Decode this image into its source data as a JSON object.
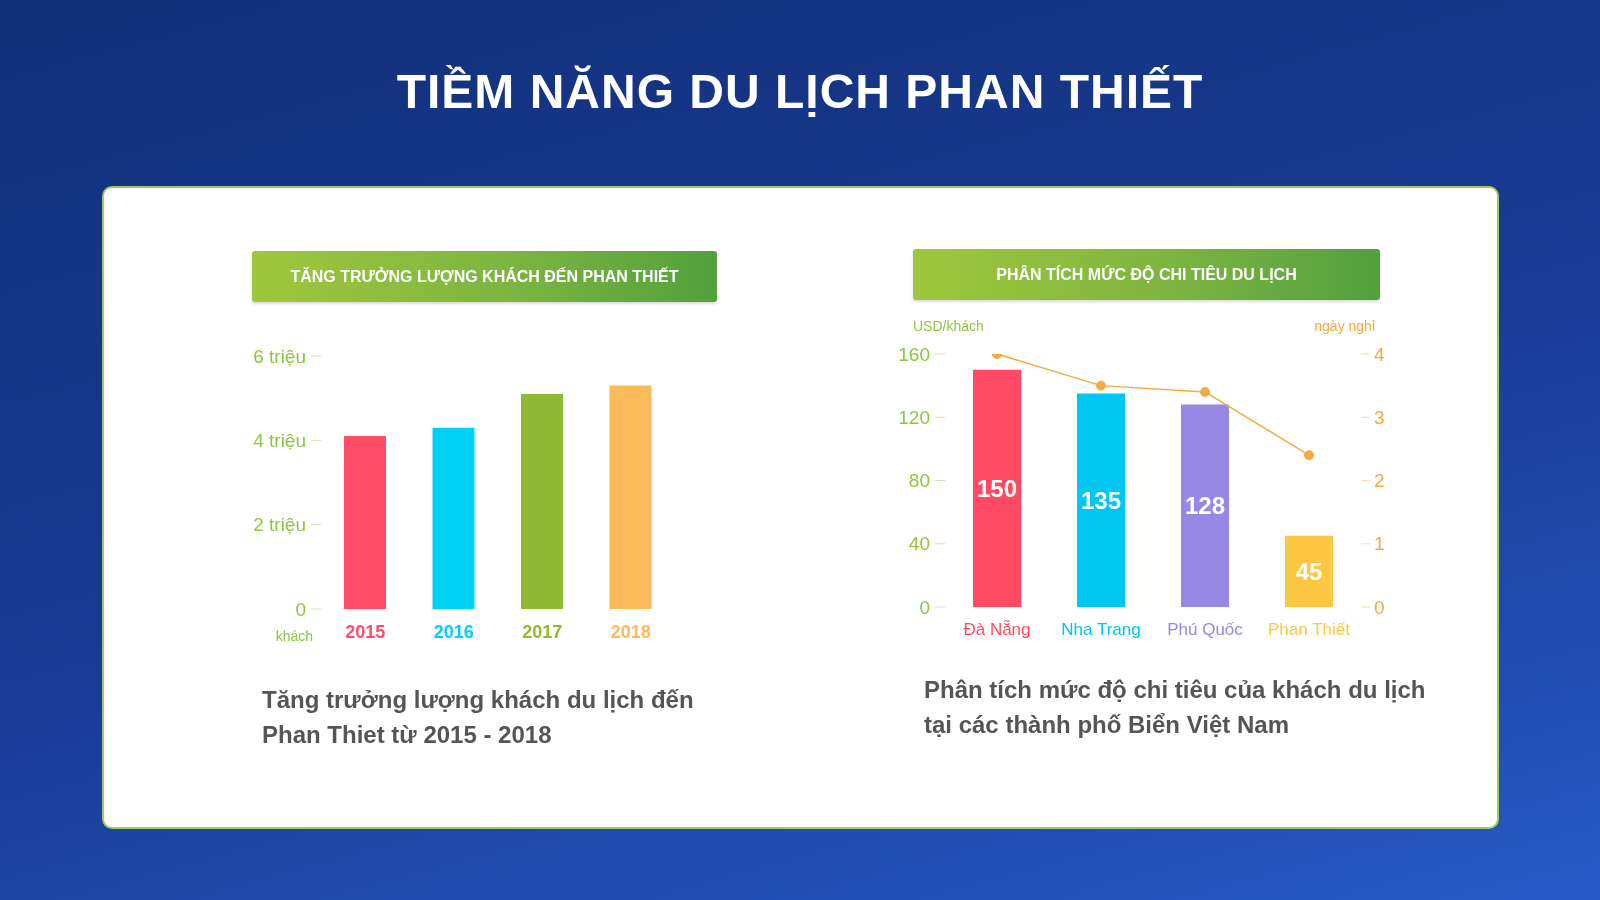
{
  "chart_data": [
    {
      "type": "other",
      "title": "TIỀM NĂNG DU LỊCH PHAN THIẾT"
    },
    {
      "type": "bar",
      "title": "TĂNG TRƯỞNG LƯỢNG KHÁCH ĐẾN PHAN THIẾT",
      "categories": [
        "2015",
        "2016",
        "2017",
        "2018"
      ],
      "values": [
        4.1,
        4.3,
        5.1,
        5.3
      ],
      "colors": [
        "#ff4d68",
        "#00d2f6",
        "#8fba34",
        "#fdba5a"
      ],
      "ylabel": "khách",
      "ylim": [
        0,
        6
      ],
      "yticks": [
        0,
        {
          "value": 2,
          "label": "2 triệu"
        },
        {
          "value": 4,
          "label": "4 triệu"
        },
        {
          "value": 6,
          "label": "6 triệu"
        }
      ],
      "annotations": [
        "Tăng trưởng lượng khách du lịch đến Phan Thiet từ 2015 - 2018"
      ]
    },
    {
      "type": "bar",
      "title": "PHÂN TÍCH MỨC ĐỘ CHI TIÊU DU LỊCH",
      "categories": [
        "Đà Nẵng",
        "Nha Trang",
        "Phú Quốc",
        "Phan Thiết"
      ],
      "series": [
        {
          "type": "bar",
          "colors": [
            "#ff4a63",
            "#00c6f2",
            "#9688e4",
            "#fcc841"
          ],
          "values": [
            150,
            135,
            128,
            45
          ],
          "value_labels": [
            "150",
            "135",
            "128",
            "45"
          ]
        },
        {
          "type": "line",
          "axis": "y2",
          "color": "#f4ac40",
          "values": [
            4.0,
            3.5,
            3.4,
            2.4
          ]
        }
      ],
      "marker": "circle",
      "ylabel": "USD/khách",
      "y2label": "ngày nghỉ",
      "ylim": [
        0,
        160
      ],
      "yticks": [
        0,
        40,
        80,
        120,
        160
      ],
      "y2lim": [
        0,
        4
      ],
      "y2ticks": [
        0,
        1,
        2,
        3,
        4
      ],
      "annotations": [
        "Phân tích mức độ chi tiêu của khách du lịch tại các thành phố Biển Việt Nam"
      ]
    }
  ]
}
